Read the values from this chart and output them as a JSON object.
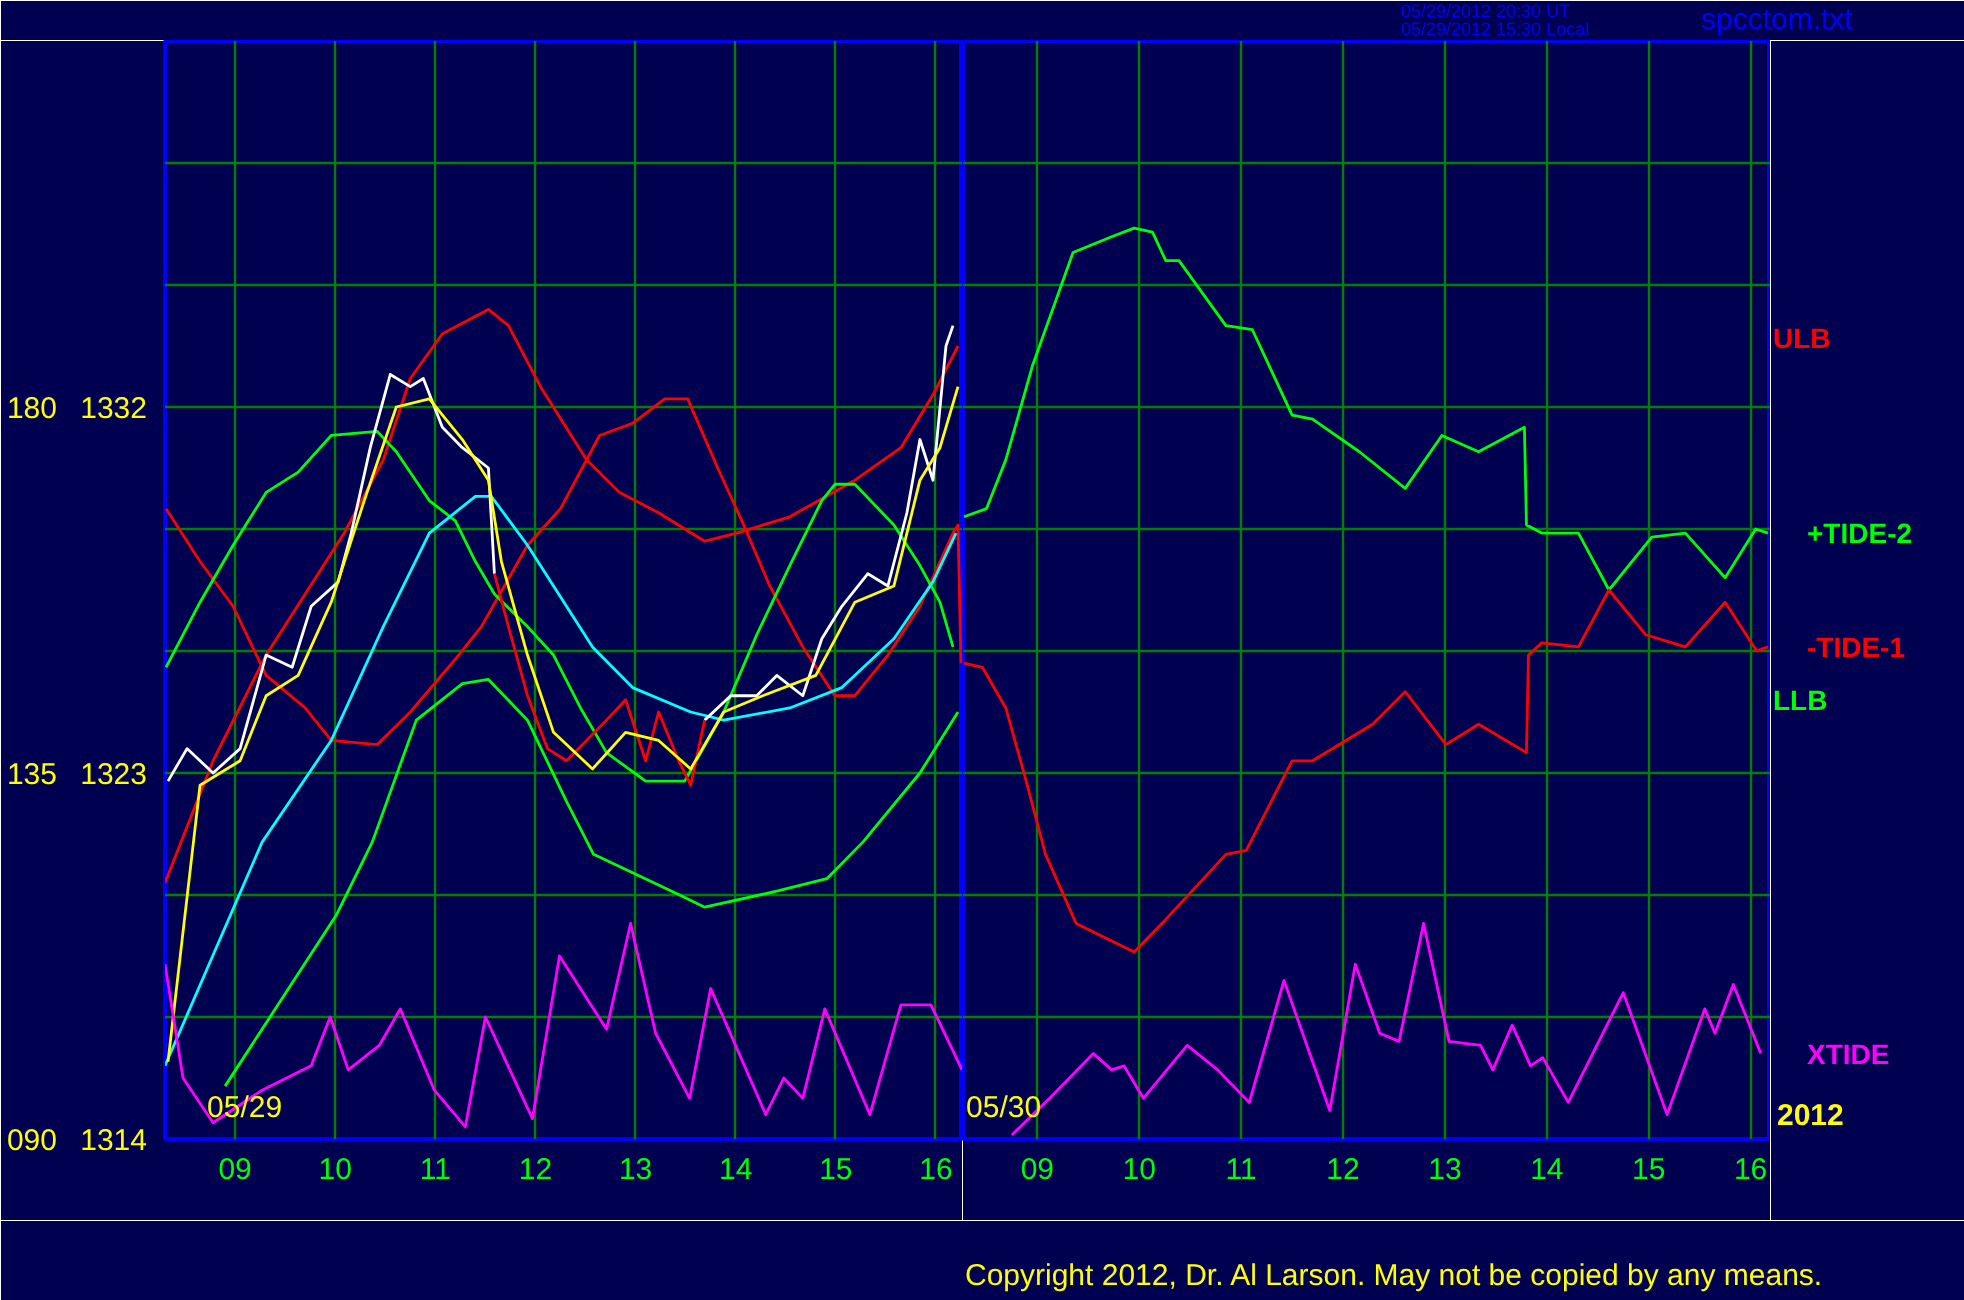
{
  "chart_data": [
    {
      "type": "line",
      "annotations": [
        "05/29"
      ],
      "xlim": [
        8.3,
        16.27
      ],
      "ylim": [
        1314,
        1341
      ],
      "y2lim": [
        90,
        225
      ],
      "xticks": [
        {
          "value": 9,
          "label": "09"
        },
        10,
        11,
        12,
        13,
        14,
        15,
        16
      ],
      "yticks": [
        1314,
        {
          "value": 1317,
          "label": null
        },
        {
          "value": 1320,
          "label": null
        },
        1323,
        {
          "value": 1326,
          "label": null
        },
        {
          "value": 1329,
          "label": null
        },
        1332,
        {
          "value": 1335,
          "label": null
        },
        {
          "value": 1338,
          "label": null
        }
      ],
      "y2ticks": [
        {
          "value": 90,
          "label": "090"
        },
        135,
        180
      ],
      "grid": true,
      "series": [
        {
          "color": "#ff0000",
          "x": [
            8.3,
            8.78,
            9.31,
            9.7,
            10.09,
            10.48,
            10.75,
            11.07,
            11.53,
            11.73,
            12.05,
            12.51,
            12.84,
            13.23,
            13.69,
            14.01,
            14.54,
            15.19,
            15.65,
            15.97,
            16.22
          ],
          "values": [
            1320.3,
            1323.3,
            1325.9,
            1327.4,
            1328.9,
            1330.7,
            1332.7,
            1333.8,
            1334.4,
            1334.0,
            1332.5,
            1330.7,
            1329.9,
            1329.4,
            1328.7,
            1328.9,
            1329.3,
            1330.2,
            1331.0,
            1332.3,
            1333.5
          ]
        },
        {
          "color": "#ff0000",
          "x": [
            8.31,
            8.65,
            8.98,
            9.31,
            9.7,
            9.96,
            10.42,
            10.75,
            11.2,
            11.46,
            11.92,
            12.25,
            12.64,
            12.97,
            13.29,
            13.52,
            13.82,
            14.08,
            14.34,
            14.67,
            14.99,
            15.19,
            15.52,
            15.84,
            16.17,
            16.22,
            16.25
          ],
          "values": [
            1329.5,
            1328.2,
            1327.1,
            1325.4,
            1324.6,
            1323.8,
            1323.7,
            1324.5,
            1325.8,
            1326.6,
            1328.6,
            1329.5,
            1331.3,
            1331.6,
            1332.2,
            1332.2,
            1330.5,
            1329.1,
            1327.6,
            1326.1,
            1324.9,
            1324.9,
            1325.9,
            1327.1,
            1328.9,
            1329.1,
            1325.7
          ]
        },
        {
          "color": "#00ff00",
          "x": [
            8.31,
            8.65,
            8.98,
            9.31,
            9.63,
            9.96,
            10.42,
            10.61,
            10.94,
            11.2,
            11.4,
            11.59,
            11.92,
            12.18,
            12.45,
            12.71,
            13.1,
            13.49,
            13.88,
            14.21,
            14.54,
            14.86,
            14.99,
            15.19,
            15.58,
            15.84,
            16.04,
            16.17
          ],
          "values": [
            1325.6,
            1327.2,
            1328.6,
            1329.9,
            1330.4,
            1331.3,
            1331.4,
            1330.9,
            1329.7,
            1329.2,
            1328.2,
            1327.4,
            1326.6,
            1325.9,
            1324.6,
            1323.5,
            1322.8,
            1322.8,
            1324.5,
            1326.4,
            1328.1,
            1329.7,
            1330.1,
            1330.1,
            1329.1,
            1328.1,
            1327.2,
            1326.1
          ]
        },
        {
          "color": "#00ff00",
          "x": [
            8.9,
            10.01,
            10.37,
            10.81,
            11.27,
            11.53,
            11.92,
            12.31,
            12.58,
            13.44,
            13.69,
            14.42,
            14.91,
            15.27,
            15.84,
            16.22
          ],
          "values": [
            1315.3,
            1319.5,
            1321.3,
            1324.3,
            1325.2,
            1325.3,
            1324.3,
            1322.3,
            1321.0,
            1320.0,
            1319.7,
            1320.1,
            1320.4,
            1321.3,
            1323.0,
            1324.5
          ]
        },
        {
          "color": "#00ffff",
          "x": [
            8.3,
            9.27,
            9.96,
            10.48,
            10.94,
            11.4,
            11.56,
            11.92,
            12.57,
            12.97,
            13.55,
            13.88,
            14.54,
            15.06,
            15.58,
            15.97,
            16.2
          ],
          "values": [
            1315.8,
            1321.3,
            1323.8,
            1326.6,
            1328.9,
            1329.8,
            1329.8,
            1328.6,
            1326.1,
            1325.1,
            1324.5,
            1324.3,
            1324.6,
            1325.1,
            1326.3,
            1327.7,
            1328.9
          ]
        },
        {
          "color": "#ffffff",
          "x": [
            8.33,
            8.52,
            8.78,
            9.05,
            9.31,
            9.57,
            9.76,
            10.03,
            10.16,
            10.35,
            10.55,
            10.75,
            10.88,
            11.07,
            11.27,
            11.53,
            11.59,
            11.73,
            11.92,
            12.12,
            12.31,
            12.51,
            12.71,
            12.9,
            13.1,
            13.23,
            13.43,
            13.55,
            13.69,
            13.95,
            14.21,
            14.41,
            14.67,
            14.86,
            15.06,
            15.32,
            15.52,
            15.71,
            15.84,
            15.97,
            16.1,
            16.17
          ],
          "values": [
            1322.8,
            1323.6,
            1323.0,
            1323.6,
            1325.9,
            1325.6,
            1327.1,
            1327.7,
            1328.9,
            1331.0,
            1332.8,
            1332.5,
            1332.7,
            1331.5,
            1331.0,
            1330.5,
            1327.9,
            null,
            null,
            null,
            null,
            null,
            null,
            null,
            null,
            null,
            null,
            null,
            1324.3,
            1324.9,
            1324.9,
            1325.4,
            1324.9,
            1326.3,
            1327.1,
            1327.9,
            1327.6,
            1329.4,
            1331.2,
            1330.2,
            1333.5,
            1334.0
          ]
        },
        {
          "color": "#ff0000",
          "x": [
            11.59,
            11.73,
            11.92,
            12.12,
            12.31,
            12.51,
            12.71,
            12.9,
            13.1,
            13.23,
            13.43,
            13.55,
            13.69
          ],
          "values": [
            1327.9,
            1326.6,
            1324.9,
            1323.6,
            1323.3,
            1323.8,
            1324.3,
            1324.8,
            1323.3,
            1324.5,
            1323.3,
            1322.7,
            1324.3
          ]
        },
        {
          "color": "#ffff00",
          "x": [
            8.33,
            8.65,
            9.05,
            9.31,
            9.63,
            9.96,
            10.29,
            10.61,
            10.94,
            11.27,
            11.53,
            11.66,
            11.92,
            12.18,
            12.57,
            12.9,
            13.23,
            13.55,
            13.88,
            14.27,
            14.8,
            15.19,
            15.58,
            15.84,
            16.04,
            16.22
          ],
          "values": [
            1315.9,
            1322.7,
            1323.3,
            1324.9,
            1325.4,
            1327.2,
            1329.7,
            1332.0,
            1332.2,
            1331.2,
            1330.2,
            1328.2,
            1325.9,
            1324.0,
            1323.1,
            1324.0,
            1323.8,
            1323.1,
            1324.5,
            1324.9,
            1325.4,
            1327.2,
            1327.6,
            1330.2,
            1331.0,
            1332.5
          ]
        },
        {
          "color": "#ff00ff",
          "x": [
            8.3,
            8.48,
            8.78,
            9.27,
            9.76,
            9.95,
            10.13,
            10.44,
            10.65,
            10.99,
            11.3,
            11.5,
            11.97,
            12.24,
            12.71,
            12.95,
            13.2,
            13.54,
            13.75,
            14.3,
            14.48,
            14.67,
            14.89,
            15.34,
            15.65,
            15.95,
            16.26
          ],
          "values": [
            1318.3,
            1315.5,
            1314.4,
            1315.2,
            1315.8,
            1317.0,
            1315.7,
            1316.3,
            1317.2,
            1315.2,
            1314.3,
            1317.0,
            1314.5,
            1318.5,
            1316.7,
            1319.3,
            1316.6,
            1315.0,
            1317.7,
            1314.6,
            1315.5,
            1315.0,
            1317.2,
            1314.6,
            1317.3,
            1317.3,
            1315.7
          ]
        }
      ]
    },
    {
      "type": "line",
      "annotations": [
        "05/29/2012 20:30 UT",
        "05/29/2012 15:30 Local",
        "spcctom.txt",
        "ULB",
        "LLB",
        "05/30",
        "2012",
        "Copyright 2012, Dr. Al Larson. May not be copied by any means."
      ],
      "xlim": [
        8.27,
        16.2
      ],
      "ylim": [
        1314,
        1341
      ],
      "xticks": [
        {
          "value": 9,
          "label": "09"
        },
        10,
        11,
        12,
        13,
        14,
        15,
        16
      ],
      "yticks": [
        1314,
        1317,
        1320,
        1323,
        1326,
        1329,
        1332,
        1335,
        1338
      ],
      "tick_labels": "x",
      "grid": true,
      "series": [
        {
          "color": "#00ff00",
          "x": [
            8.28,
            8.5,
            8.69,
            8.95,
            9.35,
            9.74,
            9.95,
            10.13,
            10.26,
            10.39,
            10.85,
            11.11,
            11.5,
            11.7,
            12.16,
            12.61,
            12.97,
            13.33,
            13.78,
            13.8,
            13.95,
            14.31,
            14.61,
            15.03,
            15.36,
            15.75,
            16.05,
            16.17
          ],
          "values": [
            1329.3,
            1329.5,
            1330.7,
            1333.0,
            1335.8,
            1336.2,
            1336.4,
            1336.3,
            1335.6,
            1335.6,
            1334.0,
            1333.9,
            1331.8,
            1331.7,
            1330.9,
            1330.0,
            1331.3,
            1330.9,
            1331.5,
            1329.1,
            1328.9,
            1328.9,
            1327.5,
            1328.8,
            1328.9,
            1327.8,
            1329.0,
            1328.9
          ],
          "name": "+TIDE-2"
        },
        {
          "color": "#ff0000",
          "x": [
            8.28,
            8.46,
            8.69,
            8.89,
            9.08,
            9.38,
            9.95,
            10.26,
            10.85,
            11.05,
            11.5,
            11.7,
            12.29,
            12.61,
            13.01,
            13.33,
            13.8,
            13.82,
            13.95,
            14.31,
            14.61,
            14.97,
            15.36,
            15.75,
            16.06,
            16.17
          ],
          "values": [
            1325.7,
            1325.6,
            1324.6,
            1322.8,
            1321.0,
            1319.3,
            1318.6,
            1319.4,
            1321.0,
            1321.1,
            1323.3,
            1323.3,
            1324.2,
            1325.0,
            1323.7,
            1324.2,
            1323.5,
            1325.9,
            1326.2,
            1326.1,
            1327.5,
            1326.4,
            1326.1,
            1327.2,
            1326.0,
            1326.1
          ],
          "name": "-TIDE-1"
        },
        {
          "color": "#ff00ff",
          "x": [
            8.75,
            9.12,
            9.55,
            9.73,
            9.85,
            10.04,
            10.47,
            10.77,
            11.08,
            11.42,
            11.87,
            12.12,
            12.36,
            12.55,
            12.79,
            13.04,
            13.35,
            13.47,
            13.66,
            13.84,
            13.96,
            14.21,
            14.45,
            14.75,
            15.18,
            15.55,
            15.65,
            15.83,
            16.1
          ],
          "values": [
            1314.1,
            1315.0,
            1316.1,
            1315.7,
            1315.8,
            1315.0,
            1316.3,
            1315.7,
            1314.9,
            1317.9,
            1314.7,
            1318.3,
            1316.6,
            1316.4,
            1319.3,
            1316.4,
            1316.3,
            1315.7,
            1316.8,
            1315.8,
            1316.0,
            1314.9,
            1316.1,
            1317.6,
            1314.6,
            1317.2,
            1316.6,
            1317.8,
            1316.1
          ],
          "name": "XTIDE"
        }
      ]
    }
  ]
}
